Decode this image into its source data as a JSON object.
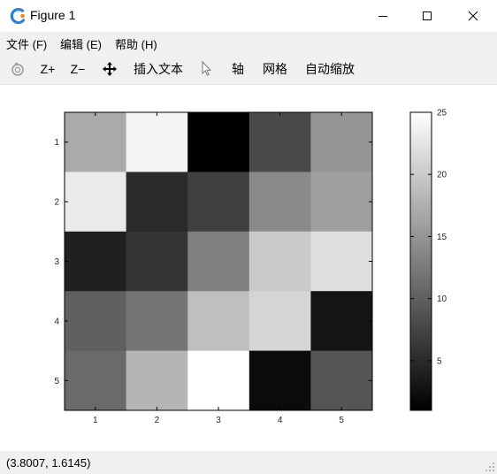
{
  "window": {
    "title": "Figure 1"
  },
  "menu": [
    {
      "label": "文件 (F)"
    },
    {
      "label": "编辑 (E)"
    },
    {
      "label": "帮助 (H)"
    }
  ],
  "toolbar": {
    "zoom_in": "Z+",
    "zoom_out": "Z−",
    "insert_text": "插入文本",
    "axes": "轴",
    "grid": "网格",
    "autoscale": "自动缩放"
  },
  "chart_data": {
    "type": "heatmap",
    "x_ticks": [
      "1",
      "2",
      "3",
      "4",
      "5"
    ],
    "y_ticks": [
      "1",
      "2",
      "3",
      "4",
      "5"
    ],
    "values": [
      [
        17,
        24,
        1,
        8,
        15
      ],
      [
        23,
        5,
        7,
        14,
        16
      ],
      [
        4,
        6,
        13,
        20,
        22
      ],
      [
        10,
        12,
        19,
        21,
        3
      ],
      [
        11,
        18,
        25,
        2,
        9
      ]
    ],
    "colormap": "gray",
    "clim": [
      1,
      25
    ],
    "colorbar_ticks": [
      5,
      10,
      15,
      20,
      25
    ],
    "colorbar_tick_labels": [
      "5",
      "10",
      "15",
      "20",
      "25"
    ]
  },
  "status": {
    "text": "(3.8007, 1.6145)"
  },
  "colors": {
    "chrome": "#f0f0f0",
    "axis": "#000000",
    "tick_label": "#262626"
  }
}
